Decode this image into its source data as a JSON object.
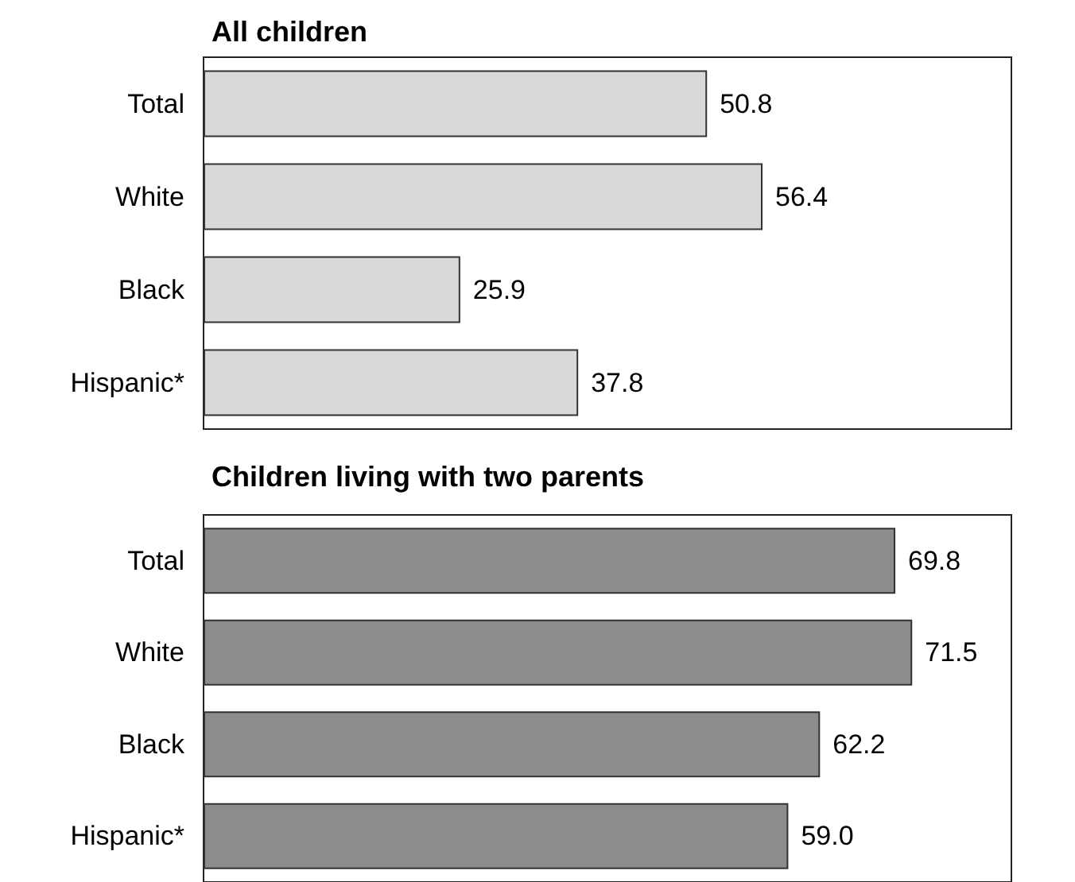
{
  "chart_data": [
    {
      "type": "bar",
      "orientation": "horizontal",
      "title": "All children",
      "categories": [
        "Total",
        "White",
        "Black",
        "Hispanic*"
      ],
      "values": [
        50.8,
        56.4,
        25.9,
        37.8
      ],
      "value_labels": [
        "50.8",
        "56.4",
        "25.9",
        "37.8"
      ],
      "color": "#d9d9d9"
    },
    {
      "type": "bar",
      "orientation": "horizontal",
      "title": "Children living with two parents",
      "categories": [
        "Total",
        "White",
        "Black",
        "Hispanic*"
      ],
      "values": [
        69.8,
        71.5,
        62.2,
        59.0
      ],
      "value_labels": [
        "69.8",
        "71.5",
        "62.2",
        "59.0"
      ],
      "color": "#8c8c8c"
    }
  ]
}
